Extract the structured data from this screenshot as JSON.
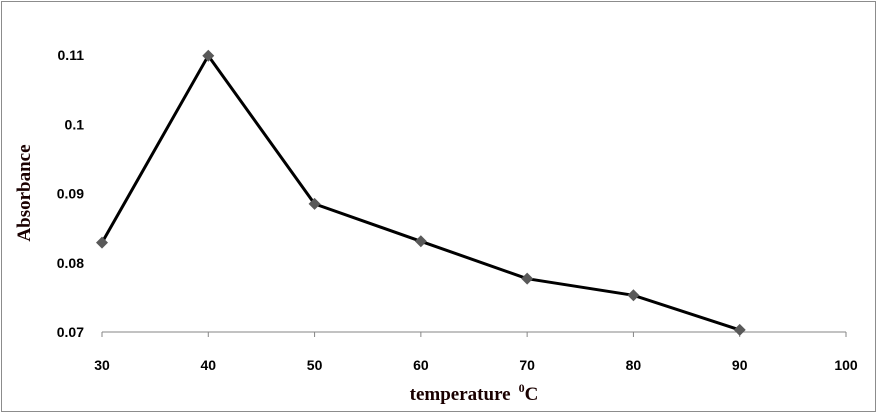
{
  "chart_data": {
    "type": "line",
    "title": "",
    "xlabel": "temperature",
    "xlabel_unit_sup": "0",
    "xlabel_unit": "C",
    "ylabel": "Absorbance",
    "x": [
      30,
      40,
      50,
      60,
      70,
      80,
      90
    ],
    "series": [
      {
        "name": "Absorbance",
        "values": [
          0.0829,
          0.1099,
          0.0885,
          0.0831,
          0.0777,
          0.0753,
          0.0703
        ]
      }
    ],
    "xlim": [
      30,
      100
    ],
    "ylim": [
      0.07,
      0.11
    ],
    "xticks": [
      "30",
      "40",
      "50",
      "60",
      "70",
      "80",
      "90",
      "100"
    ],
    "yticks": [
      "0.07",
      "0.08",
      "0.09",
      "0.1",
      "0.11"
    ],
    "grid": false,
    "colors": {
      "line": "#000000",
      "marker": "#595959"
    }
  }
}
